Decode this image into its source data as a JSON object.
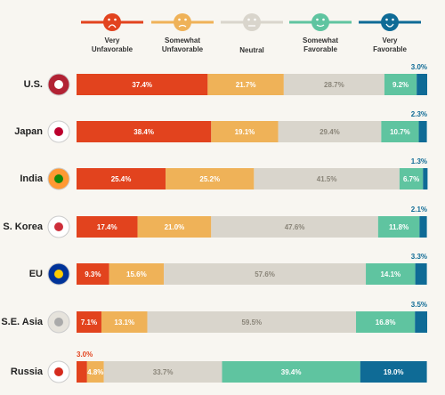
{
  "chart_data": {
    "type": "stacked-bar",
    "categories": [
      "U.S.",
      "Japan",
      "India",
      "S. Korea",
      "EU",
      "S.E. Asia",
      "Russia"
    ],
    "xlim": [
      0,
      100
    ],
    "series": [
      {
        "name": "Very Unfavorable",
        "color": "#e2431e",
        "values": [
          37.4,
          38.4,
          25.4,
          17.4,
          9.3,
          7.1,
          3.0
        ],
        "value_labels": [
          "37.4%",
          "38.4%",
          "25.4%",
          "17.4%",
          "9.3%",
          "7.1%",
          "3.0%"
        ]
      },
      {
        "name": "Somewhat Unfavorable",
        "color": "#efb258",
        "values": [
          21.7,
          19.1,
          25.2,
          21.0,
          15.6,
          13.1,
          4.8
        ],
        "value_labels": [
          "21.7%",
          "19.1%",
          "25.2%",
          "21.0%",
          "15.6%",
          "13.1%",
          "4.8%"
        ]
      },
      {
        "name": "Neutral",
        "color": "#d9d5cc",
        "values": [
          28.7,
          29.4,
          41.5,
          47.6,
          57.6,
          59.5,
          33.7
        ],
        "value_labels": [
          "28.7%",
          "29.4%",
          "41.5%",
          "47.6%",
          "57.6%",
          "59.5%",
          "33.7%"
        ]
      },
      {
        "name": "Somewhat Favorable",
        "color": "#5fc4a0",
        "values": [
          9.2,
          10.7,
          6.7,
          11.8,
          14.1,
          16.8,
          39.4
        ],
        "value_labels": [
          "9.2%",
          "10.7%",
          "6.7%",
          "11.8%",
          "14.1%",
          "16.8%",
          "39.4%"
        ]
      },
      {
        "name": "Very Favorable",
        "color": "#0f6b96",
        "values": [
          3.0,
          2.3,
          1.3,
          2.1,
          3.3,
          3.5,
          19.0
        ],
        "value_labels": [
          "3.0%",
          "2.3%",
          "1.3%",
          "2.1%",
          "3.3%",
          "3.5%",
          "19.0%"
        ]
      }
    ]
  }
}
